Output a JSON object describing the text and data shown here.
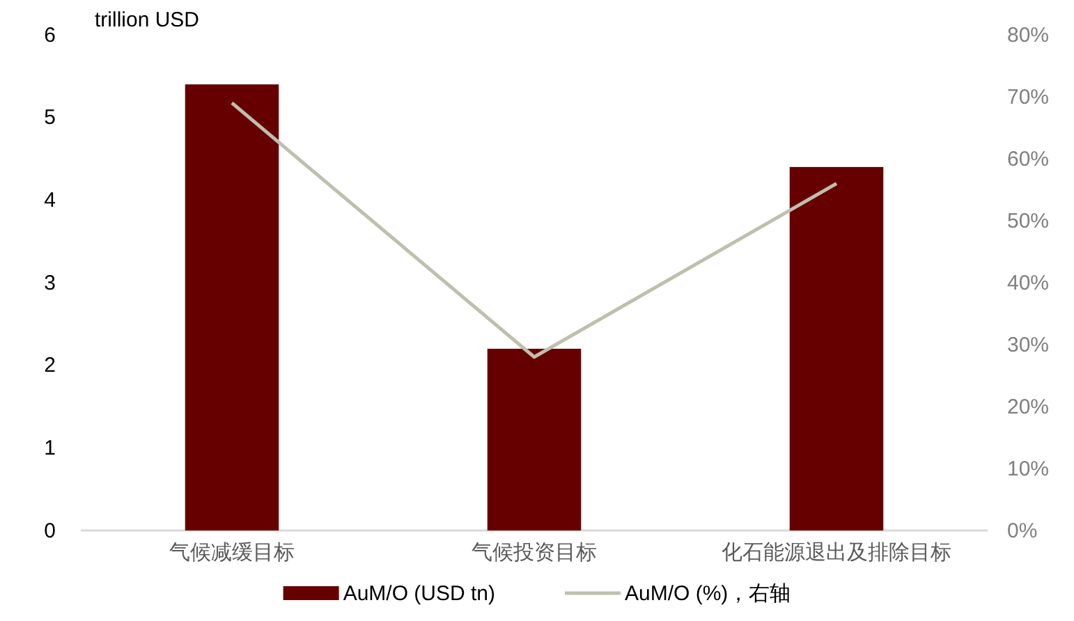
{
  "chart_data": {
    "type": "bar",
    "ylabel": "trillion USD",
    "categories": [
      "气候减缓目标",
      "气候投资目标",
      "化石能源退出及排除目标"
    ],
    "series": [
      {
        "name": "AuM/O (USD tn)",
        "color": "#660000",
        "values": [
          5.4,
          2.2,
          4.4
        ]
      },
      {
        "name": "AuM/O (%)，右轴",
        "type": "line",
        "axis": "y2",
        "color": "#bfbfae",
        "values": [
          69,
          28,
          56
        ]
      }
    ],
    "ylim": [
      0,
      6
    ],
    "yticks": [
      0,
      1,
      2,
      3,
      4,
      5,
      6
    ],
    "y2lim": [
      0,
      80
    ],
    "y2ticks": [
      {
        "value": 0,
        "label": "0%"
      },
      {
        "value": 10,
        "label": "10%"
      },
      {
        "value": 20,
        "label": "20%"
      },
      {
        "value": 30,
        "label": "30%"
      },
      {
        "value": 40,
        "label": "40%"
      },
      {
        "value": 50,
        "label": "50%"
      },
      {
        "value": 60,
        "label": "60%"
      },
      {
        "value": 70,
        "label": "70%"
      },
      {
        "value": 80,
        "label": "80%"
      }
    ],
    "grid": false,
    "legend": "bottom",
    "marker": "none"
  }
}
